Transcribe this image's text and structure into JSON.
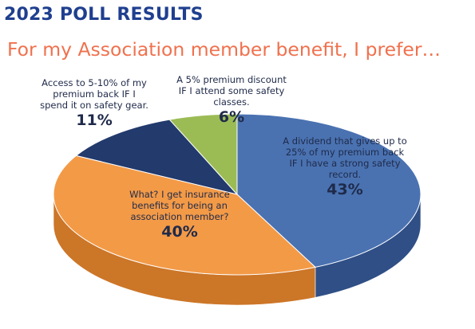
{
  "title": "2023 POLL RESULTS",
  "subtitle": "For my Association member benefit, I prefer…",
  "chart_data": {
    "type": "pie",
    "categories": [
      "A dividend that gives up to 25% of my premium back IF I have a strong safety record.",
      "What? I get insurance benefits for being an association member?",
      "Access to 5-10% of my premium back IF I spend it on safety gear.",
      "A 5% premium discount IF I attend some safety classes."
    ],
    "values": [
      43,
      40,
      11,
      6
    ],
    "value_labels": [
      "43%",
      "40%",
      "11%",
      "6%"
    ],
    "colors": [
      "#4a72b1",
      "#f39a47",
      "#223a6c",
      "#9bbc55"
    ],
    "side_colors": [
      "#2f4f86",
      "#cc7628",
      "#15264a",
      "#6f8b38"
    ],
    "legend": "none",
    "style": "3d"
  }
}
